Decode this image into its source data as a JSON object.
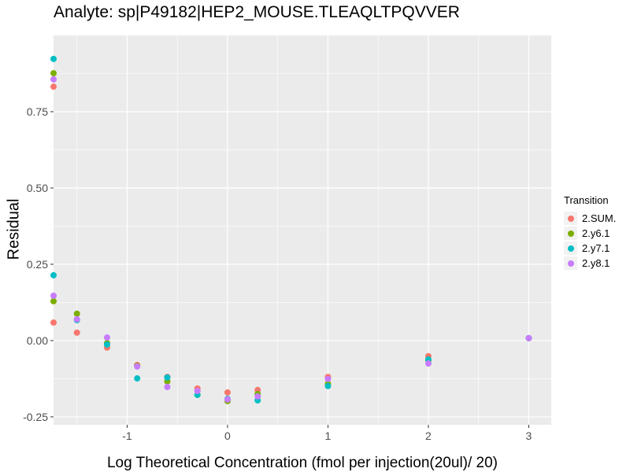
{
  "chart_data": {
    "type": "scatter",
    "title": "Analyte: sp|P49182|HEP2_MOUSE.TLEAQLTPQVVER",
    "xlabel": "Log Theoretical Concentration (fmol per injection(20ul)/ 20)",
    "ylabel": "Residual",
    "xlim": [
      -1.733,
      3.224
    ],
    "ylim": [
      -0.276,
      1.0
    ],
    "xticks": [
      {
        "v": -1,
        "label": "-1"
      },
      {
        "v": 0,
        "label": "0"
      },
      {
        "v": 1,
        "label": "1"
      },
      {
        "v": 2,
        "label": "2"
      },
      {
        "v": 3,
        "label": "3"
      }
    ],
    "yticks": [
      {
        "v": -0.25,
        "label": "-0.25"
      },
      {
        "v": 0,
        "label": "0.00"
      },
      {
        "v": 0.25,
        "label": "0.25"
      },
      {
        "v": 0.5,
        "label": "0.50"
      },
      {
        "v": 0.75,
        "label": "0.75"
      }
    ],
    "grid": true,
    "legend": {
      "title": "Transition",
      "placement": "right"
    },
    "x": [
      -1.733,
      -1.733,
      -1.5,
      -1.2,
      -0.9,
      -0.6,
      -0.3,
      0,
      0.3,
      1,
      2,
      3
    ],
    "series": [
      {
        "name": "2.SUM.",
        "color": "#F8766D",
        "points": [
          [
            -1.733,
            0.832
          ],
          [
            -1.733,
            0.059
          ],
          [
            -1.5,
            0.026
          ],
          [
            -1.2,
            -0.023
          ],
          [
            -0.9,
            -0.08
          ],
          [
            -0.6,
            -0.119
          ],
          [
            -0.3,
            -0.157
          ],
          [
            0,
            -0.17
          ],
          [
            0.3,
            -0.162
          ],
          [
            1,
            -0.119
          ],
          [
            2,
            -0.051
          ],
          [
            3,
            0.008
          ]
        ]
      },
      {
        "name": "2.y6.1",
        "color": "#7CAE00",
        "points": [
          [
            -1.733,
            0.876
          ],
          [
            -1.733,
            0.129
          ],
          [
            -1.5,
            0.088
          ],
          [
            -1.2,
            -0.008
          ],
          [
            -0.9,
            -0.083
          ],
          [
            -0.6,
            -0.134
          ],
          [
            -0.3,
            -0.178
          ],
          [
            0,
            -0.198
          ],
          [
            0.3,
            -0.175
          ],
          [
            1,
            -0.142
          ],
          [
            2,
            -0.065
          ],
          [
            3,
            0.008
          ]
        ]
      },
      {
        "name": "2.y7.1",
        "color": "#00BFC4",
        "points": [
          [
            -1.733,
            0.923
          ],
          [
            -1.733,
            0.214
          ],
          [
            -1.5,
            0.067
          ],
          [
            -1.2,
            -0.013
          ],
          [
            -0.9,
            -0.124
          ],
          [
            -0.6,
            -0.121
          ],
          [
            -0.3,
            -0.178
          ],
          [
            0,
            -0.191
          ],
          [
            0.3,
            -0.196
          ],
          [
            1,
            -0.149
          ],
          [
            2,
            -0.062
          ],
          [
            3,
            0.008
          ]
        ]
      },
      {
        "name": "2.y8.1",
        "color": "#C77CFF",
        "points": [
          [
            -1.733,
            0.856
          ],
          [
            -1.733,
            0.147
          ],
          [
            -1.5,
            0.07
          ],
          [
            -1.2,
            0.01
          ],
          [
            -0.9,
            -0.085
          ],
          [
            -0.6,
            -0.152
          ],
          [
            -0.3,
            -0.165
          ],
          [
            0,
            -0.193
          ],
          [
            0.3,
            -0.183
          ],
          [
            1,
            -0.126
          ],
          [
            2,
            -0.075
          ],
          [
            3,
            0.008
          ]
        ]
      }
    ]
  }
}
